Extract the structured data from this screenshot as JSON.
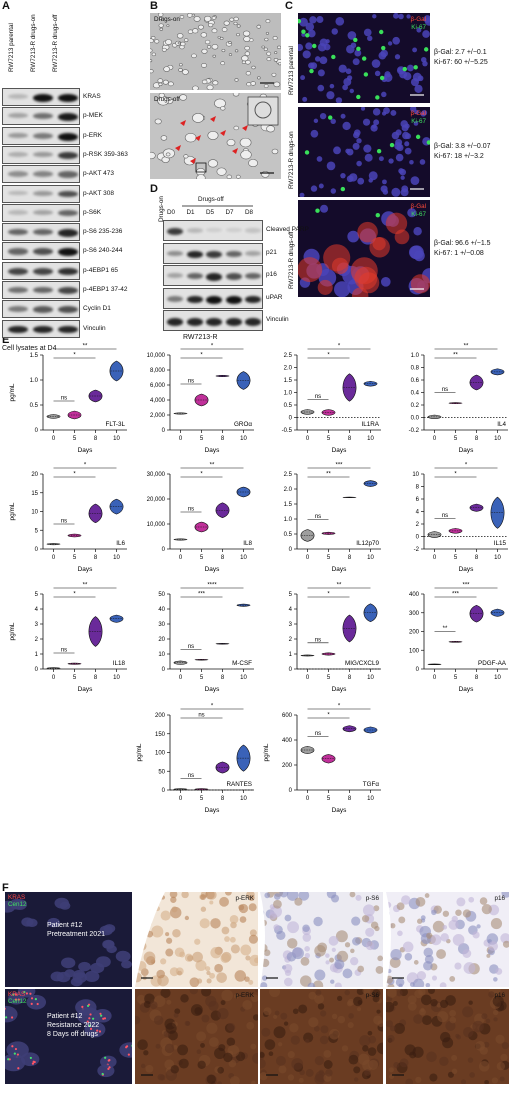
{
  "panels": {
    "A": "A",
    "B": "B",
    "C": "C",
    "D": "D",
    "E": "E",
    "F": "F"
  },
  "panel_a": {
    "columns": [
      "RW7213 parental",
      "RW7213-R drugs-on",
      "RW7213-R drugs-off"
    ],
    "rows": [
      "KRAS",
      "p-MEK",
      "p-ERK",
      "p-RSK 359-363",
      "p-AKT 473",
      "p-AKT 308",
      "p-S6K",
      "p-S6 235-236",
      "p-S6 240-244",
      "p-4EBP1 65",
      "p-4EBP1 37-42",
      "Cyclin D1",
      "Vinculin"
    ],
    "footer": "Cell lysates at D4"
  },
  "panel_b": {
    "top_label": "Drugs-on",
    "bottom_label": "Drugs-off"
  },
  "panel_c": {
    "rows": [
      {
        "ylabel": "RW7213 parental",
        "bgal": "β-Gal",
        "ki67": "Ki-67",
        "stat1": "β-Gal: 2.7 +/−0.1",
        "stat2": "Ki-67: 60 +/−5.25"
      },
      {
        "ylabel": "RW7213-R drugs-on",
        "bgal": "β-Gal",
        "ki67": "Ki-67",
        "stat1": "β-Gal: 3.8 +/−0.07",
        "stat2": "Ki-67: 18 +/−3.2"
      },
      {
        "ylabel": "RW7213-R drugs-off",
        "bgal": "β-Gal",
        "ki67": "Ki-67",
        "stat1": "β-Gal: 96.6 +/−1.5",
        "stat2": "Ki-67: 1 +/−0.08"
      }
    ]
  },
  "panel_d": {
    "on_header": "Drugs-on",
    "off_header": "Drugs-off",
    "columns": [
      "D0",
      "D1",
      "D5",
      "D7",
      "D8"
    ],
    "rows": [
      "Cleaved PARP",
      "p21",
      "p16",
      "uPAR",
      "Vinculin"
    ],
    "footer": "RW7213-R"
  },
  "panel_f": {
    "row1": {
      "label1": "Patient #12",
      "label2": "Pretreatment 2021",
      "kras": "KRAS",
      "cen12": "Cen12"
    },
    "row2": {
      "label1": "Patient #12",
      "label2": "Resistance 2022",
      "label3": "8 Days off drugs",
      "kras": "KRAS",
      "cen12": "Cen12"
    },
    "ihc": [
      "p-ERK",
      "p-S6",
      "p16"
    ]
  },
  "chart_data": [
    {
      "type": "violin",
      "title": "FLT-3L",
      "xlabel": "Days",
      "ylabel": "pg/mL",
      "categories": [
        "0",
        "5",
        "8",
        "10"
      ],
      "values": [
        0.27,
        0.3,
        0.68,
        1.18
      ],
      "spread": [
        0.04,
        0.08,
        0.12,
        0.2
      ],
      "ylim": [
        0,
        1.5
      ],
      "yticks": [
        0,
        0.5,
        1.0,
        1.5
      ],
      "ytick_labels": [
        "0",
        "0.5",
        "1.0",
        "1.5"
      ],
      "dotted_zero": false,
      "sig": [
        {
          "from": 0,
          "to": 2,
          "label": "*"
        },
        {
          "from": 0,
          "to": 3,
          "label": "**"
        },
        {
          "from": 0,
          "to": 1,
          "label": "ns"
        }
      ]
    },
    {
      "type": "violin",
      "title": "GROα",
      "xlabel": "Days",
      "ylabel": "",
      "categories": [
        "0",
        "5",
        "8",
        "10"
      ],
      "values": [
        2200,
        4000,
        7200,
        6600
      ],
      "spread": [
        100,
        800,
        100,
        1200
      ],
      "ylim": [
        0,
        10000
      ],
      "yticks": [
        0,
        2000,
        4000,
        6000,
        8000,
        10000
      ],
      "ytick_labels": [
        "0",
        "2,000",
        "4,000",
        "6,000",
        "8,000",
        "10,000"
      ],
      "dotted_zero": false,
      "sig": [
        {
          "from": 0,
          "to": 2,
          "label": "*"
        },
        {
          "from": 0,
          "to": 3,
          "label": "*"
        },
        {
          "from": 0,
          "to": 1,
          "label": "ns"
        }
      ]
    },
    {
      "type": "violin",
      "title": "IL1RA",
      "xlabel": "Days",
      "ylabel": "",
      "categories": [
        "0",
        "5",
        "8",
        "10"
      ],
      "values": [
        0.22,
        0.2,
        1.2,
        1.35
      ],
      "spread": [
        0.1,
        0.12,
        0.55,
        0.1
      ],
      "ylim": [
        -0.5,
        2.5
      ],
      "yticks": [
        -0.5,
        0,
        0.5,
        1.0,
        1.5,
        2.0,
        2.5
      ],
      "ytick_labels": [
        "-0.5",
        "0",
        "0.5",
        "1.0",
        "1.5",
        "2.0",
        "2.5"
      ],
      "dotted_zero": true,
      "sig": [
        {
          "from": 0,
          "to": 2,
          "label": "*"
        },
        {
          "from": 0,
          "to": 3,
          "label": "*"
        },
        {
          "from": 0,
          "to": 1,
          "label": "ns"
        }
      ]
    },
    {
      "type": "violin",
      "title": "IL4",
      "xlabel": "Days",
      "ylabel": "",
      "categories": [
        "0",
        "5",
        "8",
        "10"
      ],
      "values": [
        0.01,
        0.23,
        0.56,
        0.73
      ],
      "spread": [
        0.03,
        0.01,
        0.12,
        0.05
      ],
      "ylim": [
        -0.2,
        1.0
      ],
      "yticks": [
        -0.2,
        0,
        0.2,
        0.4,
        0.6,
        0.8,
        1.0
      ],
      "ytick_labels": [
        "-0.2",
        "0.0",
        "0.2",
        "0.4",
        "0.6",
        "0.8",
        "1.0"
      ],
      "dotted_zero": true,
      "sig": [
        {
          "from": 0,
          "to": 2,
          "label": "**"
        },
        {
          "from": 0,
          "to": 3,
          "label": "**"
        },
        {
          "from": 0,
          "to": 1,
          "label": "ns"
        }
      ]
    },
    {
      "type": "violin",
      "title": "IL6",
      "xlabel": "Days",
      "ylabel": "pg/mL",
      "categories": [
        "0",
        "5",
        "8",
        "10"
      ],
      "values": [
        1.3,
        3.6,
        9.5,
        11.3
      ],
      "spread": [
        0.2,
        0.4,
        2.5,
        2.0
      ],
      "ylim": [
        0,
        20
      ],
      "yticks": [
        0,
        5,
        10,
        15,
        20
      ],
      "ytick_labels": [
        "0",
        "5",
        "10",
        "15",
        "20"
      ],
      "dotted_zero": false,
      "sig": [
        {
          "from": 0,
          "to": 2,
          "label": "*"
        },
        {
          "from": 0,
          "to": 3,
          "label": "*"
        },
        {
          "from": 0,
          "to": 1,
          "label": "ns"
        }
      ]
    },
    {
      "type": "violin",
      "title": "IL8",
      "xlabel": "Days",
      "ylabel": "",
      "categories": [
        "0",
        "5",
        "8",
        "10"
      ],
      "values": [
        3800,
        8800,
        15500,
        22800
      ],
      "spread": [
        300,
        2000,
        3000,
        2000
      ],
      "ylim": [
        0,
        30000
      ],
      "yticks": [
        0,
        10000,
        20000,
        30000
      ],
      "ytick_labels": [
        "0",
        "10,000",
        "20,000",
        "30,000"
      ],
      "dotted_zero": false,
      "sig": [
        {
          "from": 0,
          "to": 2,
          "label": "*"
        },
        {
          "from": 0,
          "to": 3,
          "label": "**"
        },
        {
          "from": 0,
          "to": 1,
          "label": "ns"
        }
      ]
    },
    {
      "type": "violin",
      "title": "IL12p70",
      "xlabel": "Days",
      "ylabel": "",
      "categories": [
        "0",
        "5",
        "8",
        "10"
      ],
      "values": [
        0.45,
        0.52,
        1.72,
        2.18
      ],
      "spread": [
        0.2,
        0.04,
        0.01,
        0.1
      ],
      "ylim": [
        0,
        2.5
      ],
      "yticks": [
        0,
        0.5,
        1.0,
        1.5,
        2.0,
        2.5
      ],
      "ytick_labels": [
        "0",
        "0.5",
        "1.0",
        "1.5",
        "2.0",
        "2.5"
      ],
      "dotted_zero": false,
      "sig": [
        {
          "from": 0,
          "to": 2,
          "label": "**"
        },
        {
          "from": 0,
          "to": 3,
          "label": "***"
        },
        {
          "from": 0,
          "to": 1,
          "label": "ns"
        }
      ]
    },
    {
      "type": "violin",
      "title": "IL15",
      "xlabel": "Days",
      "ylabel": "",
      "categories": [
        "0",
        "5",
        "8",
        "10"
      ],
      "values": [
        0.3,
        0.9,
        4.6,
        3.8
      ],
      "spread": [
        0.5,
        0.4,
        0.6,
        2.5
      ],
      "ylim": [
        -2,
        10
      ],
      "yticks": [
        -2,
        0,
        2,
        4,
        6,
        8,
        10
      ],
      "ytick_labels": [
        "-2",
        "0",
        "2",
        "4",
        "6",
        "8",
        "10"
      ],
      "dotted_zero": true,
      "sig": [
        {
          "from": 0,
          "to": 2,
          "label": "*"
        },
        {
          "from": 0,
          "to": 3,
          "label": "*"
        },
        {
          "from": 0,
          "to": 1,
          "label": "ns"
        }
      ]
    },
    {
      "type": "violin",
      "title": "IL18",
      "xlabel": "Days",
      "ylabel": "pg/mL",
      "categories": [
        "0",
        "5",
        "8",
        "10"
      ],
      "values": [
        0.05,
        0.35,
        2.5,
        3.35
      ],
      "spread": [
        0.05,
        0.05,
        1.0,
        0.25
      ],
      "ylim": [
        0,
        5
      ],
      "yticks": [
        0,
        1,
        2,
        3,
        4,
        5
      ],
      "ytick_labels": [
        "0",
        "1",
        "2",
        "3",
        "4",
        "5"
      ],
      "dotted_zero": false,
      "sig": [
        {
          "from": 0,
          "to": 2,
          "label": "*"
        },
        {
          "from": 0,
          "to": 3,
          "label": "**"
        },
        {
          "from": 0,
          "to": 1,
          "label": "ns"
        }
      ]
    },
    {
      "type": "violin",
      "title": "M-CSF",
      "xlabel": "Days",
      "ylabel": "",
      "categories": [
        "0",
        "5",
        "8",
        "10"
      ],
      "values": [
        4.2,
        6.2,
        16.8,
        42.5
      ],
      "spread": [
        1.2,
        0.3,
        0.3,
        0.8
      ],
      "ylim": [
        0,
        50
      ],
      "yticks": [
        0,
        10,
        20,
        30,
        40,
        50
      ],
      "ytick_labels": [
        "0",
        "10",
        "20",
        "30",
        "40",
        "50"
      ],
      "dotted_zero": false,
      "sig": [
        {
          "from": 0,
          "to": 2,
          "label": "***"
        },
        {
          "from": 0,
          "to": 3,
          "label": "****"
        },
        {
          "from": 0,
          "to": 1,
          "label": "ns"
        }
      ]
    },
    {
      "type": "violin",
      "title": "MIG/CXCL9",
      "xlabel": "Days",
      "ylabel": "",
      "categories": [
        "0",
        "5",
        "8",
        "10"
      ],
      "values": [
        0.9,
        1.0,
        2.7,
        3.75
      ],
      "spread": [
        0.04,
        0.08,
        0.9,
        0.6
      ],
      "ylim": [
        0,
        5
      ],
      "yticks": [
        0,
        1,
        2,
        3,
        4,
        5
      ],
      "ytick_labels": [
        "0",
        "1",
        "2",
        "3",
        "4",
        "5"
      ],
      "dotted_zero": true,
      "sig": [
        {
          "from": 0,
          "to": 2,
          "label": "*"
        },
        {
          "from": 0,
          "to": 3,
          "label": "**"
        },
        {
          "from": 0,
          "to": 1,
          "label": "ns"
        }
      ]
    },
    {
      "type": "violin",
      "title": "PDGF-AA",
      "xlabel": "Days",
      "ylabel": "",
      "categories": [
        "0",
        "5",
        "8",
        "10"
      ],
      "values": [
        25,
        145,
        295,
        300
      ],
      "spread": [
        2,
        3,
        45,
        20
      ],
      "ylim": [
        0,
        400
      ],
      "yticks": [
        0,
        100,
        200,
        300,
        400
      ],
      "ytick_labels": [
        "0",
        "100",
        "200",
        "300",
        "400"
      ],
      "dotted_zero": false,
      "sig": [
        {
          "from": 0,
          "to": 1,
          "label": "**"
        },
        {
          "from": 0,
          "to": 2,
          "label": "***"
        },
        {
          "from": 0,
          "to": 3,
          "label": "***"
        }
      ]
    },
    {
      "type": "violin",
      "title": "RANTES",
      "xlabel": "Days",
      "ylabel": "pg/mL",
      "categories": [
        "0",
        "5",
        "8",
        "10"
      ],
      "values": [
        2,
        2,
        60,
        85
      ],
      "spread": [
        2,
        2,
        15,
        35
      ],
      "ylim": [
        0,
        200
      ],
      "yticks": [
        0,
        50,
        100,
        150,
        200
      ],
      "ytick_labels": [
        "0",
        "50",
        "100",
        "150",
        "200"
      ],
      "dotted_zero": true,
      "sig": [
        {
          "from": 0,
          "to": 2,
          "label": "ns"
        },
        {
          "from": 0,
          "to": 3,
          "label": "*"
        },
        {
          "from": 0,
          "to": 1,
          "label": "ns"
        }
      ]
    },
    {
      "type": "violin",
      "title": "TGFα",
      "xlabel": "Days",
      "ylabel": "pg/mL",
      "categories": [
        "0",
        "5",
        "8",
        "10"
      ],
      "values": [
        320,
        250,
        490,
        480
      ],
      "spread": [
        30,
        35,
        25,
        25
      ],
      "ylim": [
        0,
        600
      ],
      "yticks": [
        0,
        200,
        400,
        600
      ],
      "ytick_labels": [
        "0",
        "200",
        "400",
        "600"
      ],
      "dotted_zero": false,
      "sig": [
        {
          "from": 0,
          "to": 2,
          "label": "*"
        },
        {
          "from": 0,
          "to": 3,
          "label": "*"
        },
        {
          "from": 0,
          "to": 1,
          "label": "ns"
        }
      ]
    }
  ]
}
